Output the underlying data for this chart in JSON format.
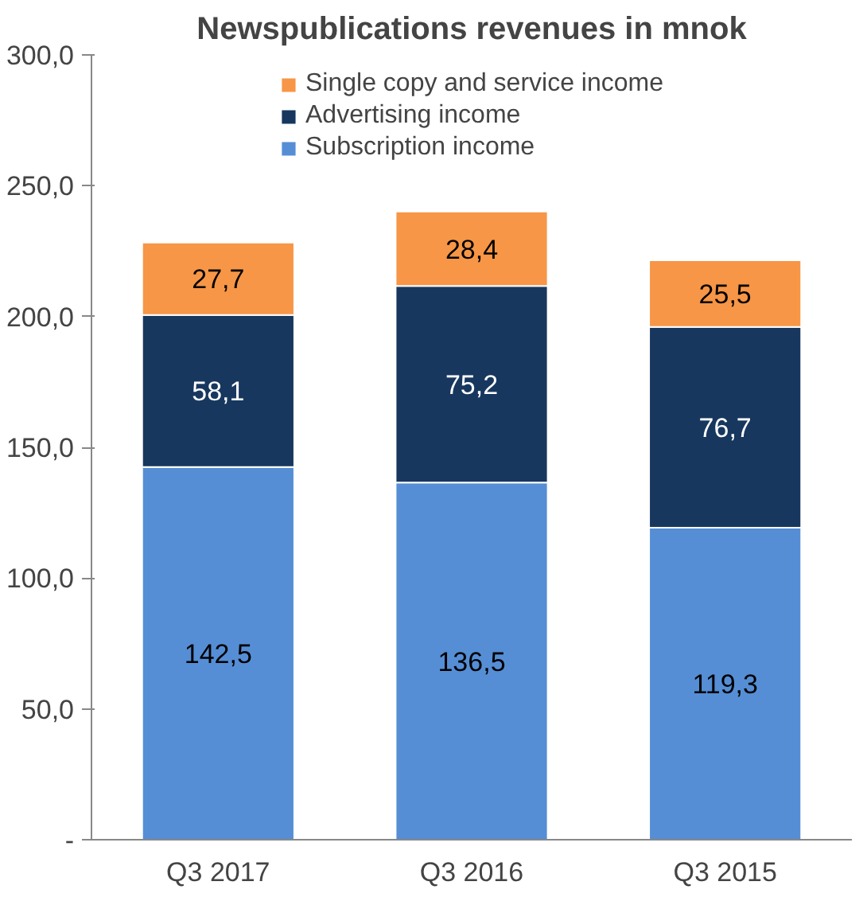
{
  "chart_data": {
    "type": "bar",
    "title": "Newspublications revenues in mnok",
    "stacked": true,
    "categories": [
      "Q3 2017",
      "Q3 2016",
      "Q3 2015"
    ],
    "series": [
      {
        "name": "Subscription income",
        "color": "#558ed5",
        "values": [
          142.5,
          136.5,
          119.3
        ],
        "value_labels": [
          "142,5",
          "136,5",
          "119,3"
        ]
      },
      {
        "name": "Advertising income",
        "color": "#17375e",
        "values": [
          58.1,
          75.2,
          76.7
        ],
        "value_labels": [
          "58,1",
          "75,2",
          "76,7"
        ]
      },
      {
        "name": "Single copy and service income",
        "color": "#f79646",
        "values": [
          27.7,
          28.4,
          25.5
        ],
        "value_labels": [
          "27,7",
          "28,4",
          "25,5"
        ]
      }
    ],
    "ylim": [
      0,
      300
    ],
    "yticks": [
      {
        "value": 0,
        "label": "-"
      },
      {
        "value": 50,
        "label": "50,0"
      },
      {
        "value": 100,
        "label": "100,0"
      },
      {
        "value": 150,
        "label": "150,0"
      },
      {
        "value": 200,
        "label": "200,0"
      },
      {
        "value": 250,
        "label": "250,0"
      },
      {
        "value": 300,
        "label": "300,0"
      }
    ],
    "legend": "top",
    "grid": false
  }
}
